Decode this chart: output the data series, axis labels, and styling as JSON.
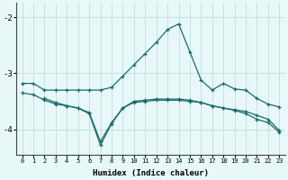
{
  "xlabel": "Humidex (Indice chaleur)",
  "background_color": "#e8f8f8",
  "grid_color": "#c8e0e0",
  "line_color": "#1a6b6b",
  "x_ticks": [
    0,
    1,
    2,
    3,
    4,
    5,
    6,
    7,
    8,
    9,
    10,
    11,
    12,
    13,
    14,
    15,
    16,
    17,
    18,
    19,
    20,
    21,
    22,
    23
  ],
  "y_ticks": [
    -4,
    -3,
    -2
  ],
  "ylim": [
    -4.45,
    -1.75
  ],
  "xlim": [
    -0.5,
    23.5
  ],
  "line1_x": [
    0,
    1,
    2,
    3,
    4,
    5,
    6,
    7,
    8,
    9,
    10,
    11,
    12,
    13,
    14,
    15,
    16,
    17,
    18,
    19,
    20,
    21,
    22,
    23
  ],
  "line1_y": [
    -3.18,
    -3.18,
    -3.3,
    -3.3,
    -3.3,
    -3.3,
    -3.3,
    -3.3,
    -3.25,
    -3.05,
    -2.85,
    -2.65,
    -2.45,
    -2.22,
    -2.12,
    -2.62,
    -3.12,
    -3.3,
    -3.18,
    -3.28,
    -3.3,
    -3.45,
    -3.55,
    -3.6
  ],
  "line2_x": [
    0,
    1,
    2,
    3,
    4,
    5,
    6,
    7,
    8,
    9,
    10,
    11,
    12,
    13,
    14,
    15,
    16,
    17,
    18,
    19,
    20,
    21,
    22,
    23
  ],
  "line2_y": [
    -3.35,
    -3.38,
    -3.48,
    -3.55,
    -3.58,
    -3.62,
    -3.7,
    -4.22,
    -3.88,
    -3.62,
    -3.52,
    -3.5,
    -3.48,
    -3.48,
    -3.48,
    -3.5,
    -3.52,
    -3.58,
    -3.62,
    -3.65,
    -3.68,
    -3.75,
    -3.82,
    -4.02
  ],
  "line3_x": [
    2,
    3,
    4,
    5,
    6,
    7,
    8,
    9,
    10,
    11,
    12,
    13,
    14,
    15,
    16,
    17,
    18,
    19,
    20,
    21,
    22,
    23
  ],
  "line3_y": [
    -3.45,
    -3.52,
    -3.58,
    -3.62,
    -3.72,
    -4.28,
    -3.9,
    -3.62,
    -3.5,
    -3.48,
    -3.46,
    -3.46,
    -3.46,
    -3.48,
    -3.52,
    -3.58,
    -3.62,
    -3.66,
    -3.72,
    -3.82,
    -3.88,
    -4.05
  ]
}
